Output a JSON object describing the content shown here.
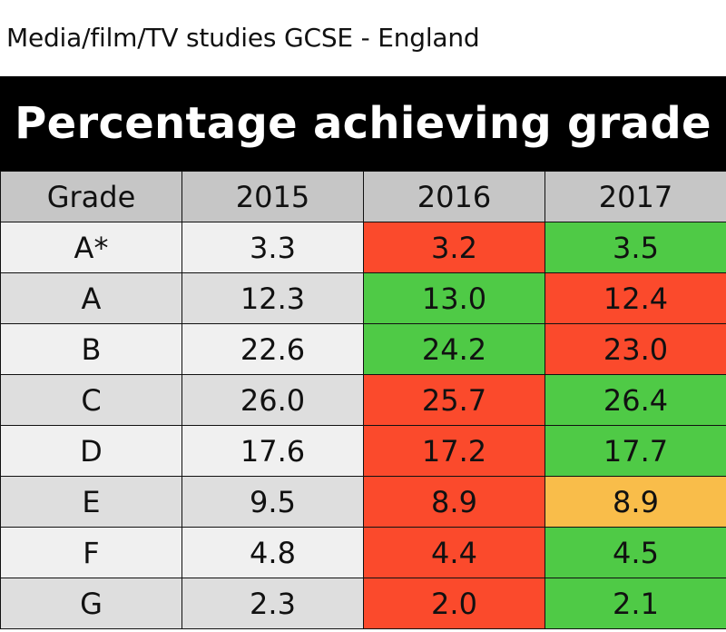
{
  "page_title": "Media/film/TV studies GCSE - England",
  "banner_title": "Percentage achieving grade",
  "colors": {
    "header_bg": "#c6c6c6",
    "row_light": "#f0f0f0",
    "row_dark": "#dedede",
    "increase": "#4fca46",
    "decrease": "#fb4a2c",
    "no_change": "#f9bd4a"
  },
  "chart_data": {
    "type": "table",
    "title": "Percentage achieving grade",
    "columns": [
      "Grade",
      "2015",
      "2016",
      "2017"
    ],
    "rows": [
      {
        "grade": "A*",
        "values": [
          "3.3",
          "3.2",
          "3.5"
        ],
        "status": [
          "none",
          "decrease",
          "increase"
        ]
      },
      {
        "grade": "A",
        "values": [
          "12.3",
          "13.0",
          "12.4"
        ],
        "status": [
          "none",
          "increase",
          "decrease"
        ]
      },
      {
        "grade": "B",
        "values": [
          "22.6",
          "24.2",
          "23.0"
        ],
        "status": [
          "none",
          "increase",
          "decrease"
        ]
      },
      {
        "grade": "C",
        "values": [
          "26.0",
          "25.7",
          "26.4"
        ],
        "status": [
          "none",
          "decrease",
          "increase"
        ]
      },
      {
        "grade": "D",
        "values": [
          "17.6",
          "17.2",
          "17.7"
        ],
        "status": [
          "none",
          "decrease",
          "increase"
        ]
      },
      {
        "grade": "E",
        "values": [
          "9.5",
          "8.9",
          "8.9"
        ],
        "status": [
          "none",
          "decrease",
          "no_change"
        ]
      },
      {
        "grade": "F",
        "values": [
          "4.8",
          "4.4",
          "4.5"
        ],
        "status": [
          "none",
          "decrease",
          "increase"
        ]
      },
      {
        "grade": "G",
        "values": [
          "2.3",
          "2.0",
          "2.1"
        ],
        "status": [
          "none",
          "decrease",
          "increase"
        ]
      }
    ]
  }
}
